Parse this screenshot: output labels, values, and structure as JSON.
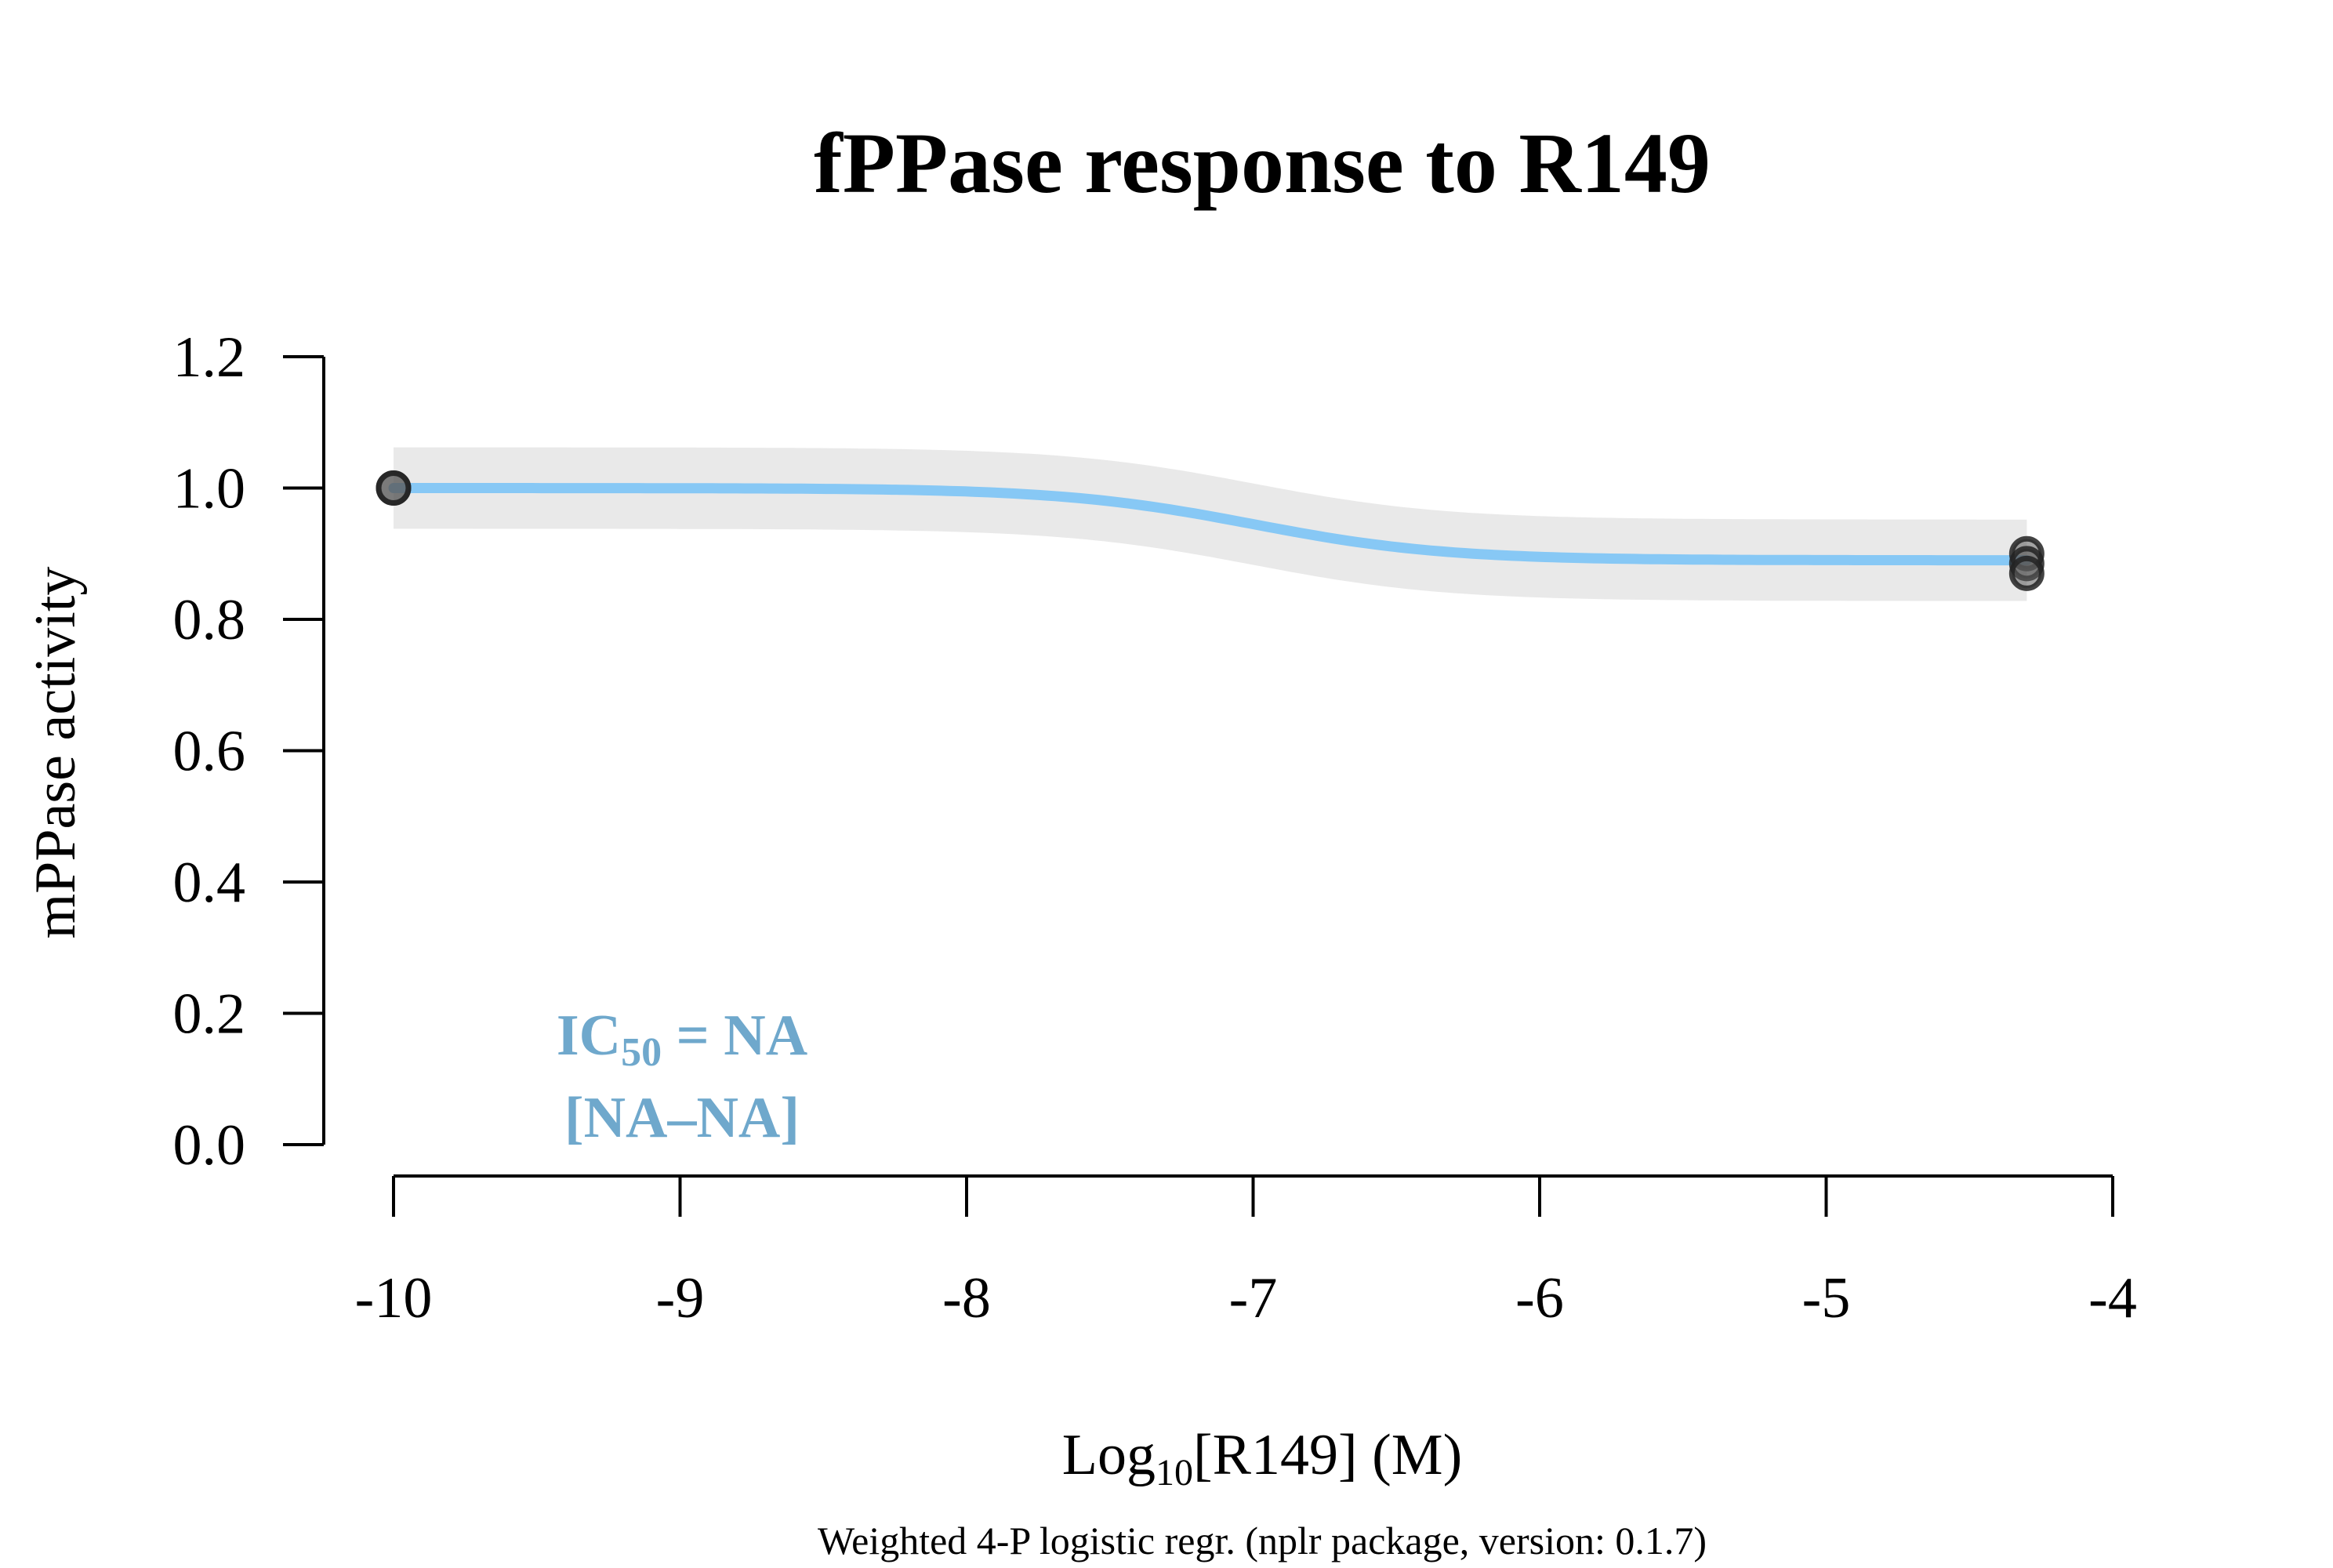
{
  "chart_data": {
    "type": "line",
    "title": "fPPase response to R149",
    "xlabel": {
      "prefix": "Log",
      "subscript": "10",
      "suffix": "[R149] (M)"
    },
    "ylabel": "mPPase activity",
    "caption": "Weighted 4-P logistic regr. (nplr package, version: 0.1.7)",
    "xlim": [
      -10,
      -4
    ],
    "ylim": [
      0,
      1.2
    ],
    "x_ticks": [
      -10,
      -9,
      -8,
      -7,
      -6,
      -5,
      -4
    ],
    "x_tick_labels": [
      "-10",
      "-9",
      "-8",
      "-7",
      "-6",
      "-5",
      "-4"
    ],
    "y_ticks": [
      0,
      0.2,
      0.4,
      0.6,
      0.8,
      1.0,
      1.2
    ],
    "y_tick_labels": [
      "0.0",
      "0.2",
      "0.4",
      "0.6",
      "0.8",
      "1.0",
      "1.2"
    ],
    "grid": false,
    "annotation": {
      "ic_prefix": "IC",
      "ic_subscript": "50",
      "ic_suffix": " = NA",
      "interval": "[NA–NA]",
      "color": "#6fa8cc"
    },
    "fit_curve": {
      "color": "#87c8f5",
      "bottom": 0.89,
      "top": 1.0,
      "log_ic50": -7.0,
      "slope": 1.3,
      "band_halfwidth": 0.062,
      "band_color": "#e9e9e9",
      "x_range": [
        -10,
        -4.3
      ]
    },
    "points": {
      "color": "#222222",
      "x": [
        -10,
        -10,
        -4.3,
        -4.3,
        -4.3
      ],
      "y": [
        1.0,
        1.0,
        0.9,
        0.885,
        0.87
      ]
    }
  }
}
